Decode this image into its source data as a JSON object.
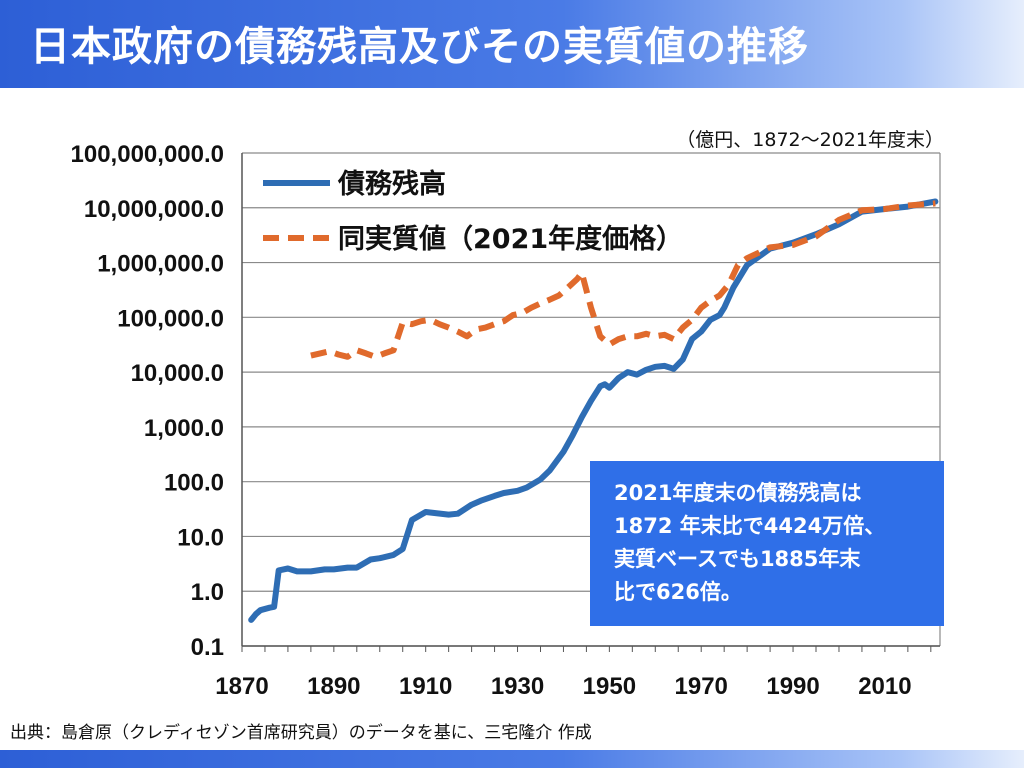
{
  "header": {
    "title": "日本政府の債務残高及びその実質値の推移"
  },
  "unit_note": "（億円、1872〜2021年度末）",
  "callout": {
    "lines": [
      "2021年度末の債務残高は",
      "1872 年末比で4424万倍、",
      "実質ベースでも1885年末",
      "比で626倍。"
    ]
  },
  "source_note": "出典：島倉原（クレディセゾン首席研究員）のデータを基に、三宅隆介 作成",
  "colors": {
    "nominal_series": "#2e6db4",
    "real_series": "#e06a2c",
    "title_bar": "#2d5fd6",
    "callout_bg": "#2f6fe8"
  },
  "chart_data": {
    "type": "line",
    "title": "日本政府の債務残高及びその実質値の推移",
    "xlabel": "",
    "ylabel": "",
    "y_scale": "log",
    "xlim": [
      1870,
      2022
    ],
    "ylim": [
      0.1,
      100000000
    ],
    "grid": "horizontal",
    "legend_position": "top-left",
    "x_ticks": [
      1870,
      1890,
      1910,
      1930,
      1950,
      1970,
      1990,
      2010
    ],
    "x_tick_labels": [
      "1870",
      "1890",
      "1910",
      "1930",
      "1950",
      "1970",
      "1990",
      "2010"
    ],
    "y_ticks": [
      0.1,
      1,
      10,
      100,
      1000,
      10000,
      100000,
      1000000,
      10000000,
      100000000
    ],
    "y_tick_labels": [
      "0.1",
      "1.0",
      "10.0",
      "100.0",
      "1,000.0",
      "10,000.0",
      "100,000.0",
      "1,000,000.0",
      "10,000,000.0",
      "100,000,000.0"
    ],
    "series": [
      {
        "name": "債務残高",
        "style": "solid",
        "color": "#2e6db4",
        "x": [
          1872,
          1873,
          1874,
          1876,
          1877,
          1878,
          1880,
          1882,
          1885,
          1888,
          1890,
          1893,
          1895,
          1898,
          1900,
          1903,
          1905,
          1907,
          1910,
          1915,
          1917,
          1920,
          1922,
          1925,
          1927,
          1930,
          1932,
          1935,
          1937,
          1940,
          1942,
          1944,
          1946,
          1948,
          1949,
          1950,
          1952,
          1954,
          1956,
          1958,
          1960,
          1962,
          1964,
          1966,
          1968,
          1970,
          1972,
          1974,
          1975,
          1977,
          1980,
          1985,
          1990,
          1995,
          2000,
          2005,
          2010,
          2015,
          2021
        ],
        "y": [
          0.3,
          0.38,
          0.45,
          0.5,
          0.52,
          2.4,
          2.6,
          2.3,
          2.3,
          2.5,
          2.5,
          2.7,
          2.7,
          3.8,
          4,
          4.6,
          5.9,
          20,
          28,
          25,
          26,
          38,
          45,
          55,
          62,
          68,
          78,
          110,
          160,
          350,
          700,
          1500,
          3000,
          5500,
          6000,
          5200,
          7800,
          10000,
          9000,
          11000,
          12500,
          13000,
          11500,
          17000,
          40000,
          55000,
          90000,
          110000,
          150000,
          350000,
          900000,
          1800000,
          2300000,
          3300000,
          5000000,
          8500000,
          9500000,
          10500000,
          13000000
        ]
      },
      {
        "name": "同実質値（2021年度価格）",
        "style": "dashed",
        "color": "#e06a2c",
        "x": [
          1885,
          1887,
          1889,
          1891,
          1893,
          1895,
          1897,
          1899,
          1901,
          1903,
          1905,
          1907,
          1909,
          1911,
          1913,
          1915,
          1917,
          1919,
          1921,
          1923,
          1925,
          1927,
          1929,
          1931,
          1933,
          1935,
          1937,
          1939,
          1941,
          1943,
          1944,
          1946,
          1948,
          1950,
          1952,
          1954,
          1956,
          1958,
          1960,
          1962,
          1964,
          1966,
          1968,
          1970,
          1972,
          1974,
          1976,
          1978,
          1980,
          1985,
          1990,
          1995,
          2000,
          2005,
          2010,
          2015,
          2021
        ],
        "y": [
          20000,
          22000,
          24000,
          21000,
          19000,
          25000,
          22000,
          19000,
          22000,
          25000,
          80000,
          75000,
          85000,
          90000,
          75000,
          65000,
          55000,
          45000,
          60000,
          65000,
          75000,
          85000,
          110000,
          120000,
          150000,
          180000,
          210000,
          250000,
          350000,
          500000,
          650000,
          150000,
          45000,
          32000,
          40000,
          45000,
          45000,
          50000,
          45000,
          48000,
          40000,
          65000,
          90000,
          150000,
          200000,
          250000,
          400000,
          900000,
          1200000,
          1900000,
          2100000,
          3000000,
          6000000,
          9000000,
          9500000,
          11000000,
          12000000
        ]
      }
    ]
  }
}
